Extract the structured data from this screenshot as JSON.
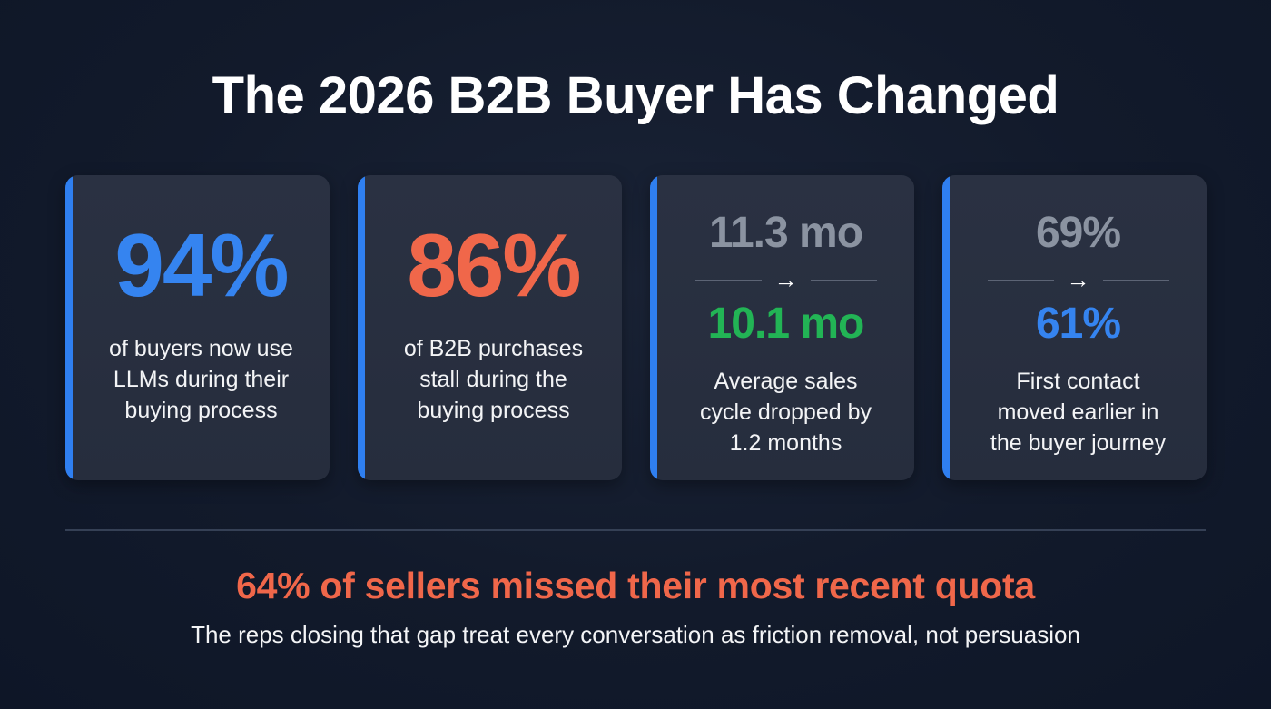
{
  "title": "The 2026 B2B Buyer Has Changed",
  "colors": {
    "accent_blue": "#2f7ff0",
    "accent_orange": "#f0674a",
    "accent_green": "#22b455",
    "muted_gray": "#8b93a1"
  },
  "cards": [
    {
      "stat": "94%",
      "stat_color": "#3584f0",
      "description_lines": [
        "of buyers now use",
        "LLMs during their",
        "buying process"
      ]
    },
    {
      "stat": "86%",
      "stat_color": "#f0674a",
      "description_lines": [
        "of B2B purchases",
        "stall during the",
        "buying process"
      ]
    },
    {
      "from": "11.3 mo",
      "arrow": "→",
      "to": "10.1 mo",
      "to_color": "#22b455",
      "description_lines": [
        "Average sales",
        "cycle dropped by",
        "1.2 months"
      ]
    },
    {
      "from": "69%",
      "arrow": "→",
      "to": "61%",
      "to_color": "#3584f0",
      "description_lines": [
        "First contact",
        "moved earlier in",
        "the buyer journey"
      ]
    }
  ],
  "footer": {
    "headline": "64% of sellers missed their most recent quota",
    "subline": "The reps closing that gap treat every conversation as friction removal, not persuasion"
  }
}
